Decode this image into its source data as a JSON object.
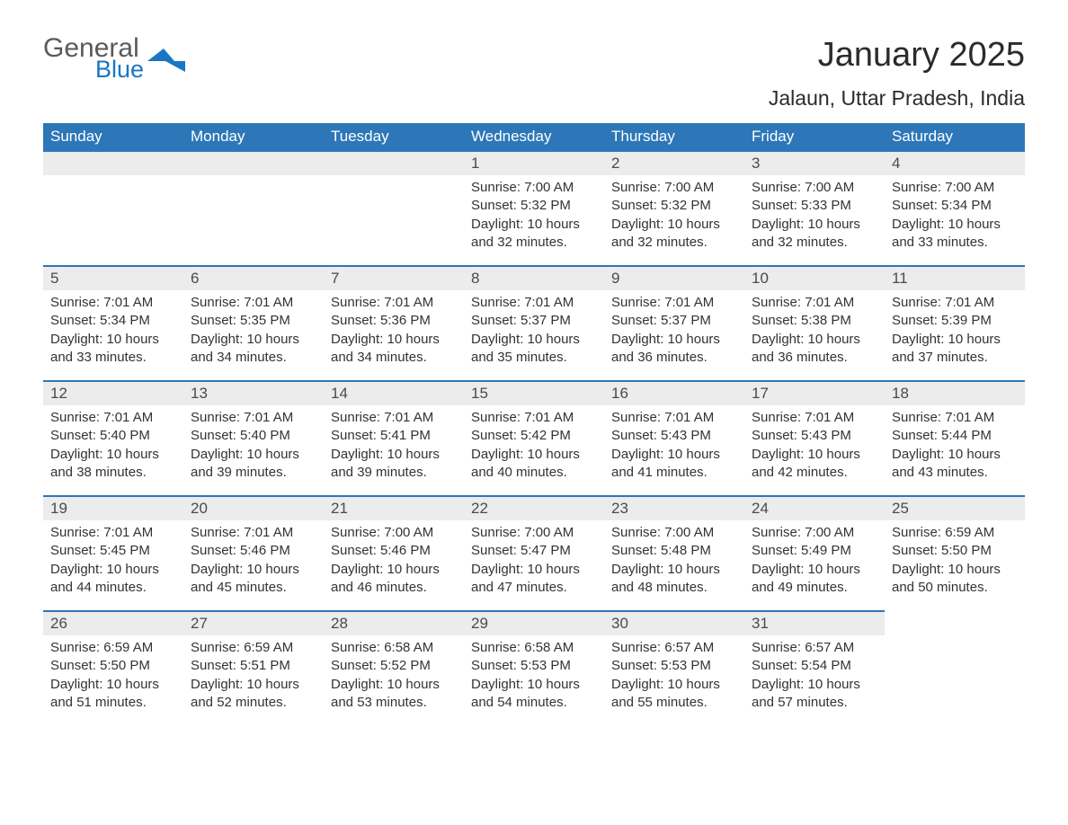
{
  "logo": {
    "word1": "General",
    "word2": "Blue"
  },
  "title": "January 2025",
  "subtitle": "Jalaun, Uttar Pradesh, India",
  "colors": {
    "header_bg": "#2d77b8",
    "header_text": "#ffffff",
    "daynum_bg": "#ececec",
    "daynum_border": "#2d77b8",
    "body_text": "#333333",
    "logo_gray": "#5a5a5a",
    "logo_blue": "#1976c4",
    "page_bg": "#ffffff"
  },
  "typography": {
    "title_fontsize": 38,
    "subtitle_fontsize": 23,
    "header_fontsize": 17,
    "daynum_fontsize": 17,
    "body_fontsize": 15
  },
  "weekdays": [
    "Sunday",
    "Monday",
    "Tuesday",
    "Wednesday",
    "Thursday",
    "Friday",
    "Saturday"
  ],
  "weeks": [
    [
      null,
      null,
      null,
      {
        "n": "1",
        "sunrise": "Sunrise: 7:00 AM",
        "sunset": "Sunset: 5:32 PM",
        "daylight": "Daylight: 10 hours and 32 minutes."
      },
      {
        "n": "2",
        "sunrise": "Sunrise: 7:00 AM",
        "sunset": "Sunset: 5:32 PM",
        "daylight": "Daylight: 10 hours and 32 minutes."
      },
      {
        "n": "3",
        "sunrise": "Sunrise: 7:00 AM",
        "sunset": "Sunset: 5:33 PM",
        "daylight": "Daylight: 10 hours and 32 minutes."
      },
      {
        "n": "4",
        "sunrise": "Sunrise: 7:00 AM",
        "sunset": "Sunset: 5:34 PM",
        "daylight": "Daylight: 10 hours and 33 minutes."
      }
    ],
    [
      {
        "n": "5",
        "sunrise": "Sunrise: 7:01 AM",
        "sunset": "Sunset: 5:34 PM",
        "daylight": "Daylight: 10 hours and 33 minutes."
      },
      {
        "n": "6",
        "sunrise": "Sunrise: 7:01 AM",
        "sunset": "Sunset: 5:35 PM",
        "daylight": "Daylight: 10 hours and 34 minutes."
      },
      {
        "n": "7",
        "sunrise": "Sunrise: 7:01 AM",
        "sunset": "Sunset: 5:36 PM",
        "daylight": "Daylight: 10 hours and 34 minutes."
      },
      {
        "n": "8",
        "sunrise": "Sunrise: 7:01 AM",
        "sunset": "Sunset: 5:37 PM",
        "daylight": "Daylight: 10 hours and 35 minutes."
      },
      {
        "n": "9",
        "sunrise": "Sunrise: 7:01 AM",
        "sunset": "Sunset: 5:37 PM",
        "daylight": "Daylight: 10 hours and 36 minutes."
      },
      {
        "n": "10",
        "sunrise": "Sunrise: 7:01 AM",
        "sunset": "Sunset: 5:38 PM",
        "daylight": "Daylight: 10 hours and 36 minutes."
      },
      {
        "n": "11",
        "sunrise": "Sunrise: 7:01 AM",
        "sunset": "Sunset: 5:39 PM",
        "daylight": "Daylight: 10 hours and 37 minutes."
      }
    ],
    [
      {
        "n": "12",
        "sunrise": "Sunrise: 7:01 AM",
        "sunset": "Sunset: 5:40 PM",
        "daylight": "Daylight: 10 hours and 38 minutes."
      },
      {
        "n": "13",
        "sunrise": "Sunrise: 7:01 AM",
        "sunset": "Sunset: 5:40 PM",
        "daylight": "Daylight: 10 hours and 39 minutes."
      },
      {
        "n": "14",
        "sunrise": "Sunrise: 7:01 AM",
        "sunset": "Sunset: 5:41 PM",
        "daylight": "Daylight: 10 hours and 39 minutes."
      },
      {
        "n": "15",
        "sunrise": "Sunrise: 7:01 AM",
        "sunset": "Sunset: 5:42 PM",
        "daylight": "Daylight: 10 hours and 40 minutes."
      },
      {
        "n": "16",
        "sunrise": "Sunrise: 7:01 AM",
        "sunset": "Sunset: 5:43 PM",
        "daylight": "Daylight: 10 hours and 41 minutes."
      },
      {
        "n": "17",
        "sunrise": "Sunrise: 7:01 AM",
        "sunset": "Sunset: 5:43 PM",
        "daylight": "Daylight: 10 hours and 42 minutes."
      },
      {
        "n": "18",
        "sunrise": "Sunrise: 7:01 AM",
        "sunset": "Sunset: 5:44 PM",
        "daylight": "Daylight: 10 hours and 43 minutes."
      }
    ],
    [
      {
        "n": "19",
        "sunrise": "Sunrise: 7:01 AM",
        "sunset": "Sunset: 5:45 PM",
        "daylight": "Daylight: 10 hours and 44 minutes."
      },
      {
        "n": "20",
        "sunrise": "Sunrise: 7:01 AM",
        "sunset": "Sunset: 5:46 PM",
        "daylight": "Daylight: 10 hours and 45 minutes."
      },
      {
        "n": "21",
        "sunrise": "Sunrise: 7:00 AM",
        "sunset": "Sunset: 5:46 PM",
        "daylight": "Daylight: 10 hours and 46 minutes."
      },
      {
        "n": "22",
        "sunrise": "Sunrise: 7:00 AM",
        "sunset": "Sunset: 5:47 PM",
        "daylight": "Daylight: 10 hours and 47 minutes."
      },
      {
        "n": "23",
        "sunrise": "Sunrise: 7:00 AM",
        "sunset": "Sunset: 5:48 PM",
        "daylight": "Daylight: 10 hours and 48 minutes."
      },
      {
        "n": "24",
        "sunrise": "Sunrise: 7:00 AM",
        "sunset": "Sunset: 5:49 PM",
        "daylight": "Daylight: 10 hours and 49 minutes."
      },
      {
        "n": "25",
        "sunrise": "Sunrise: 6:59 AM",
        "sunset": "Sunset: 5:50 PM",
        "daylight": "Daylight: 10 hours and 50 minutes."
      }
    ],
    [
      {
        "n": "26",
        "sunrise": "Sunrise: 6:59 AM",
        "sunset": "Sunset: 5:50 PM",
        "daylight": "Daylight: 10 hours and 51 minutes."
      },
      {
        "n": "27",
        "sunrise": "Sunrise: 6:59 AM",
        "sunset": "Sunset: 5:51 PM",
        "daylight": "Daylight: 10 hours and 52 minutes."
      },
      {
        "n": "28",
        "sunrise": "Sunrise: 6:58 AM",
        "sunset": "Sunset: 5:52 PM",
        "daylight": "Daylight: 10 hours and 53 minutes."
      },
      {
        "n": "29",
        "sunrise": "Sunrise: 6:58 AM",
        "sunset": "Sunset: 5:53 PM",
        "daylight": "Daylight: 10 hours and 54 minutes."
      },
      {
        "n": "30",
        "sunrise": "Sunrise: 6:57 AM",
        "sunset": "Sunset: 5:53 PM",
        "daylight": "Daylight: 10 hours and 55 minutes."
      },
      {
        "n": "31",
        "sunrise": "Sunrise: 6:57 AM",
        "sunset": "Sunset: 5:54 PM",
        "daylight": "Daylight: 10 hours and 57 minutes."
      },
      null
    ]
  ]
}
